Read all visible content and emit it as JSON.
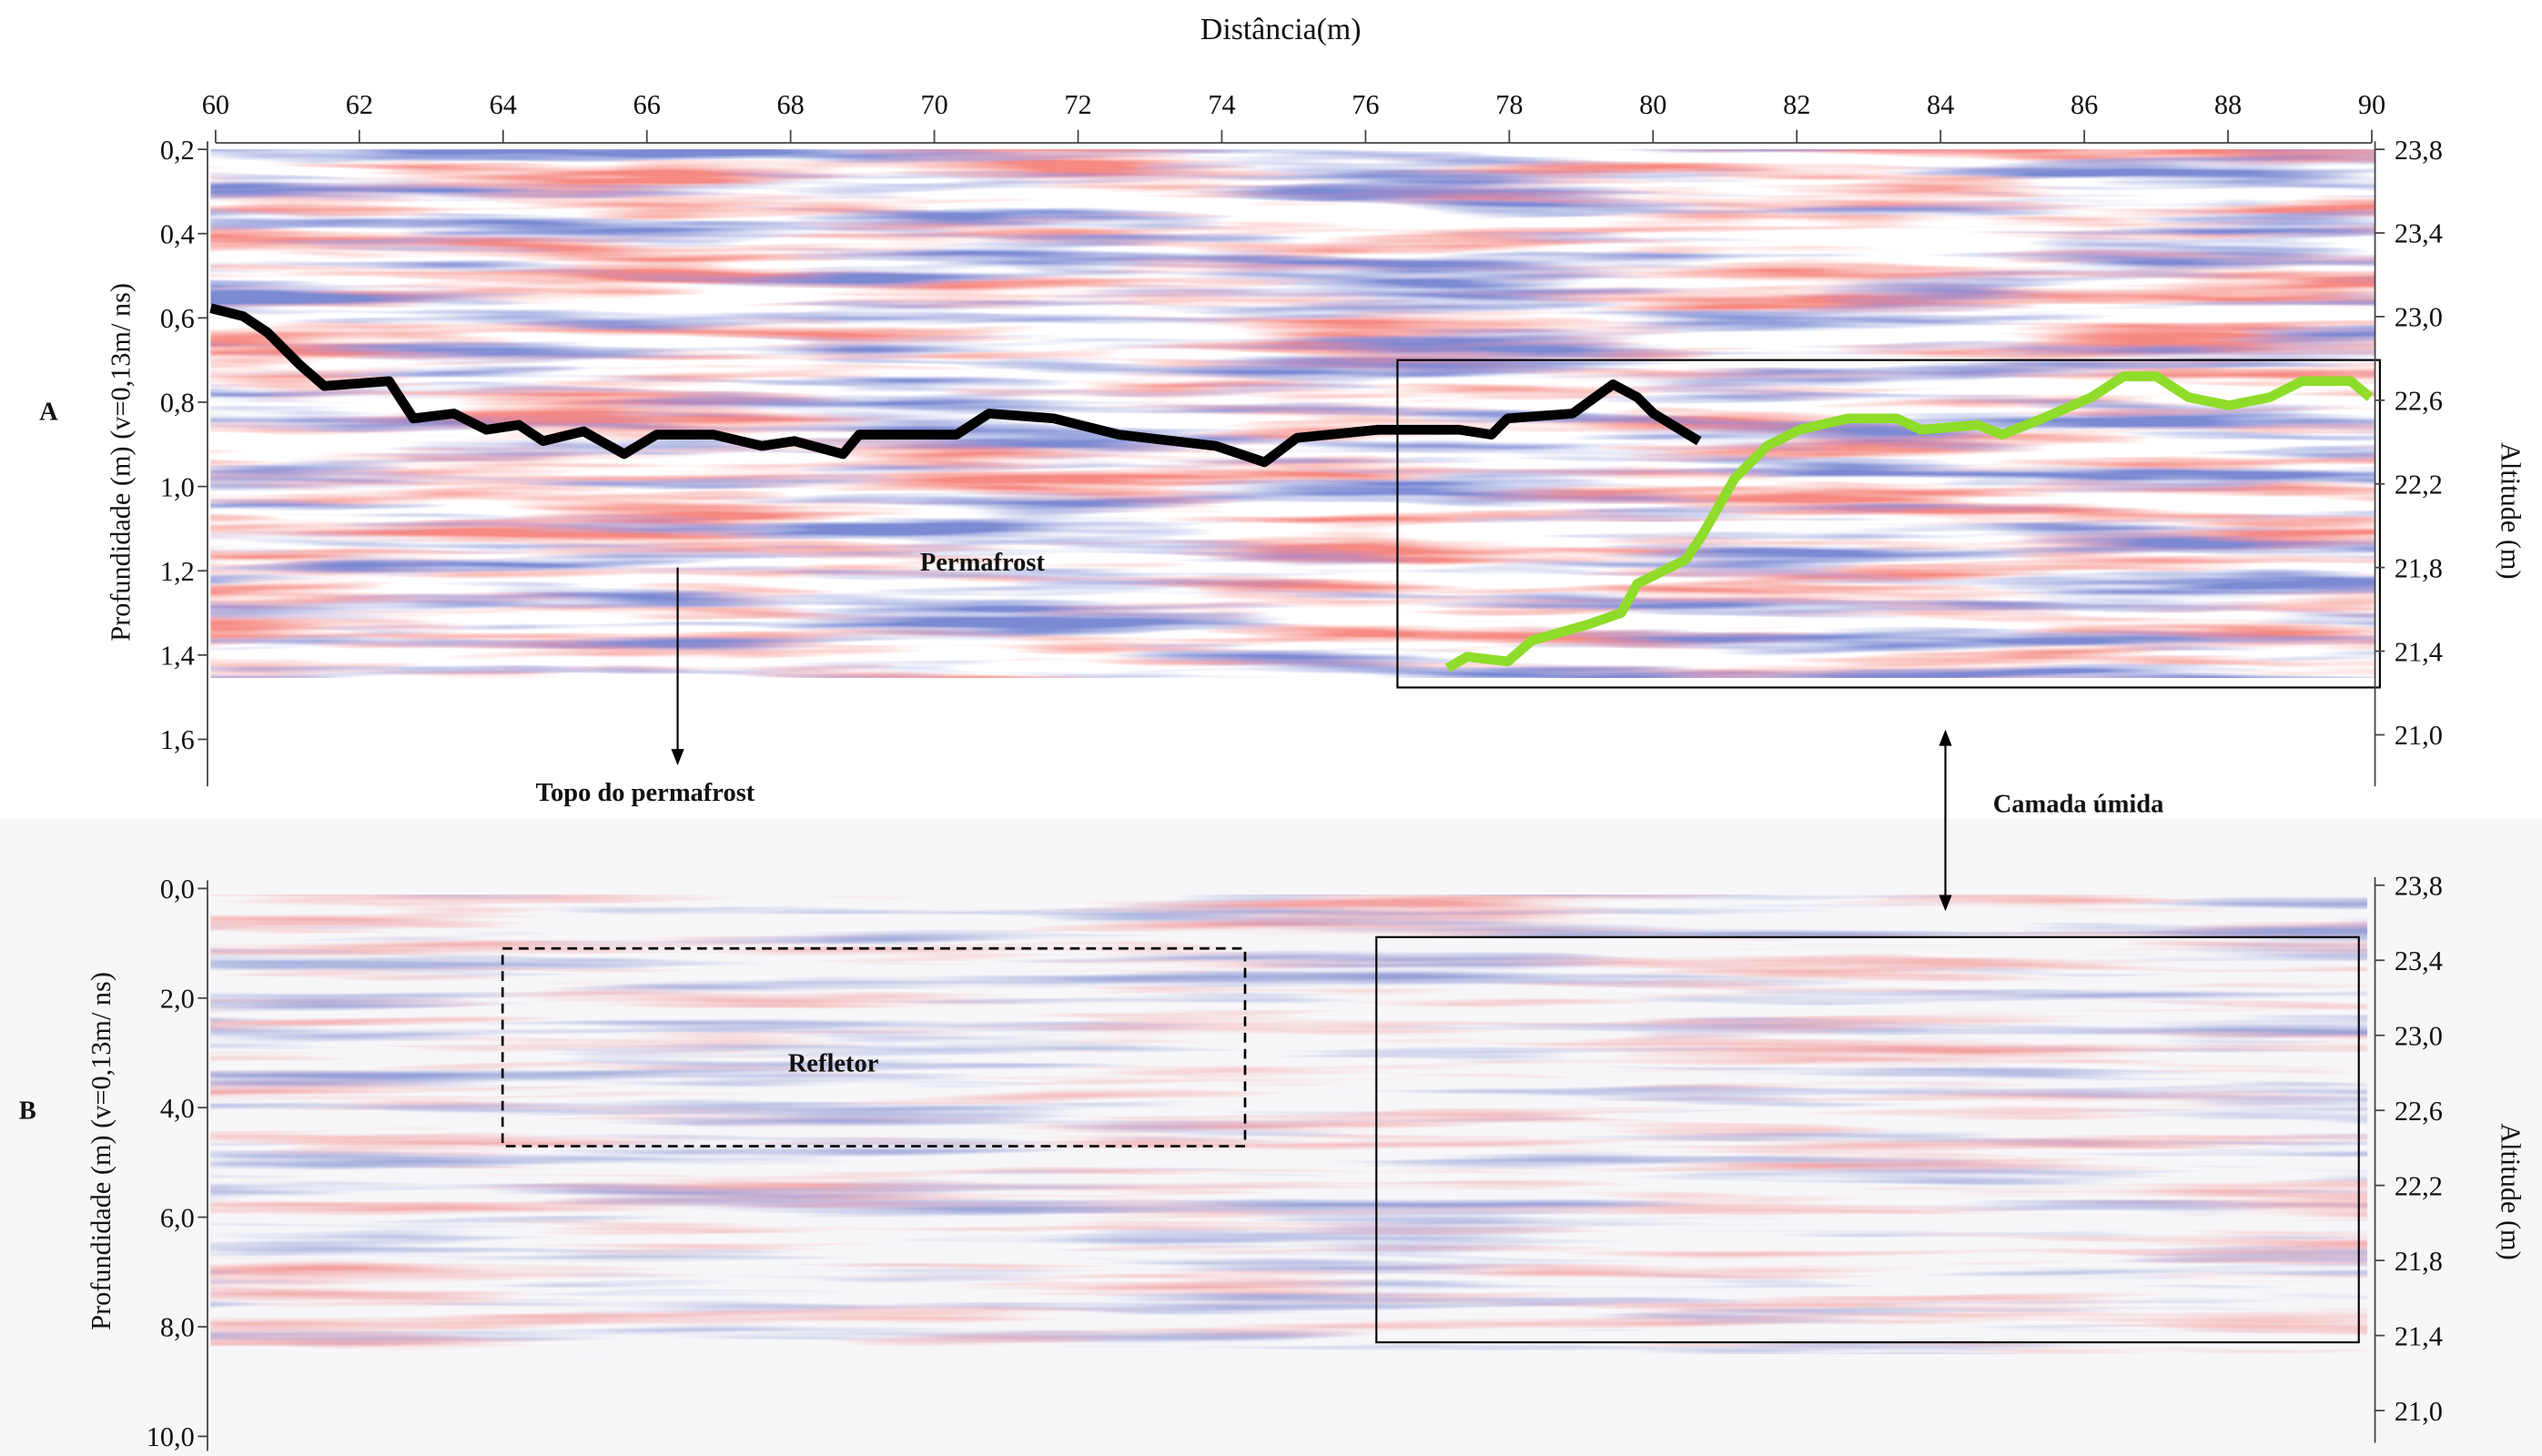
{
  "top_axis": {
    "title": "Distância(m)",
    "ticks": [
      "60",
      "62",
      "64",
      "66",
      "68",
      "70",
      "72",
      "74",
      "76",
      "78",
      "80",
      "82",
      "84",
      "86",
      "88",
      "90"
    ]
  },
  "panel_a": {
    "label": "A",
    "left_title": "Profundidade (m)  (v=0,13m/ ns)",
    "left_ticks": [
      "0,2",
      "0,4",
      "0,6",
      "0,8",
      "1,0",
      "1,2",
      "1,4",
      "1,6"
    ],
    "right_title": "Altitude (m)",
    "right_ticks": [
      "23,8",
      "23,4",
      "23,0",
      "22,6",
      "22,2",
      "21,8",
      "21,4",
      "21,0"
    ],
    "permafrost": "Permafrost",
    "permafrost_top": "Topo do permafrost"
  },
  "wet_layer": "Camada úmida",
  "panel_b": {
    "label": "B",
    "left_title": "Profundidade (m)  (v=0,13m/ ns)",
    "left_ticks": [
      "0,0",
      "2,0",
      "4,0",
      "6,0",
      "8,0",
      "10,0"
    ],
    "right_title": "Altitude (m)",
    "right_ticks": [
      "23,8",
      "23,4",
      "23,0",
      "22,6",
      "22,2",
      "21,8",
      "21,4",
      "21,0"
    ],
    "reflector": "Refletor"
  }
}
